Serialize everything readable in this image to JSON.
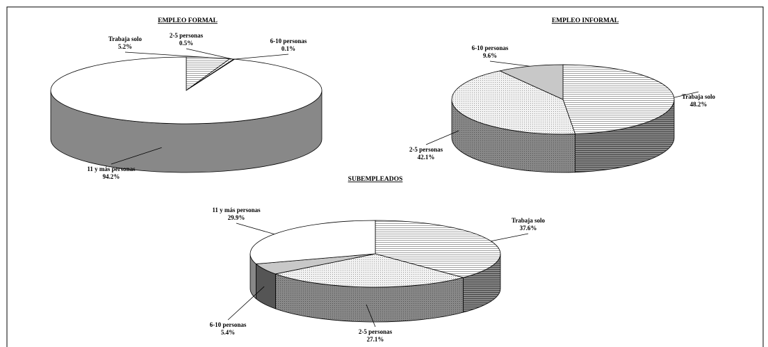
{
  "chart_data": [
    {
      "type": "pie",
      "title": "EMPLEO FORMAL",
      "categories": [
        "Trabaja solo",
        "2-5 personas",
        "6-10 personas",
        "11 y más personas"
      ],
      "values": [
        5.2,
        0.5,
        0.1,
        94.2
      ],
      "value_labels": [
        "5.2%",
        "0.5%",
        "0.1%",
        "94.2%"
      ]
    },
    {
      "type": "pie",
      "title": "EMPLEO INFORMAL",
      "categories": [
        "Trabaja solo",
        "2-5 personas",
        "6-10 personas"
      ],
      "values": [
        48.2,
        42.1,
        9.6
      ],
      "value_labels": [
        "48.2%",
        "42.1%",
        "9.6%"
      ]
    },
    {
      "type": "pie",
      "title": "SUBEMPLEADOS",
      "categories": [
        "Trabaja solo",
        "2-5 personas",
        "6-10 personas",
        "11 y más personas"
      ],
      "values": [
        37.6,
        27.1,
        5.4,
        29.9
      ],
      "value_labels": [
        "37.6%",
        "27.1%",
        "5.4%",
        "29.9%"
      ]
    }
  ]
}
